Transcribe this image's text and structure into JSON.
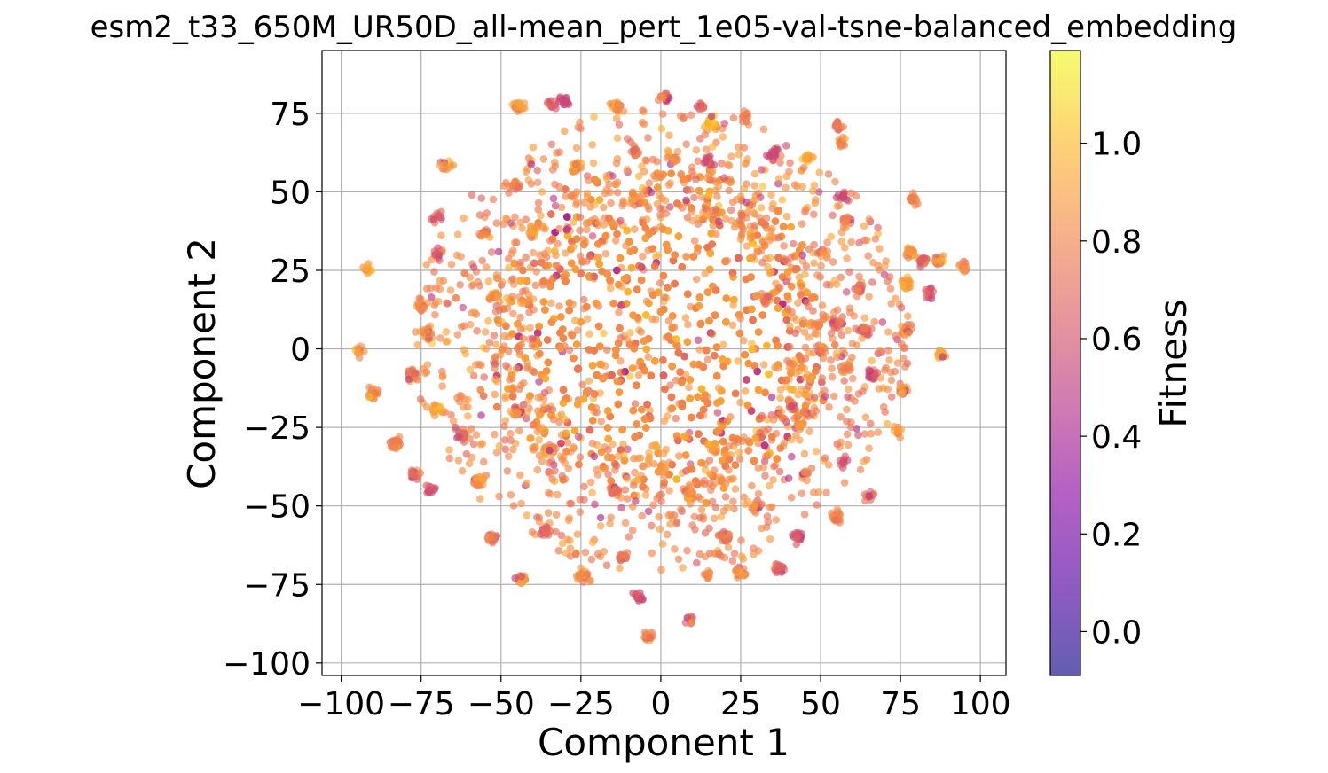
{
  "chart_data": {
    "type": "scatter",
    "title": "esm2_t33_650M_UR50D_all-mean_pert_1e05-val-tsne-balanced_embedding",
    "xlabel": "Component 1",
    "ylabel": "Component 2",
    "xlim": [
      -106,
      108
    ],
    "ylim": [
      -104,
      95
    ],
    "xticks": [
      -100,
      -75,
      -50,
      -25,
      0,
      25,
      50,
      75,
      100
    ],
    "xtick_labels": [
      "−100",
      "−75",
      "−50",
      "−25",
      "0",
      "25",
      "50",
      "75",
      "100"
    ],
    "yticks": [
      -100,
      -75,
      -50,
      -25,
      0,
      25,
      50,
      75
    ],
    "ytick_labels": [
      "−100",
      "−75",
      "−50",
      "−25",
      "0",
      "25",
      "50",
      "75"
    ],
    "grid": true,
    "colorbar": {
      "label": "Fitness",
      "colormap": "plasma",
      "range": [
        -0.09,
        1.19
      ],
      "ticks": [
        0.0,
        0.2,
        0.4,
        0.6,
        0.8,
        1.0
      ],
      "tick_labels": [
        "0.0",
        "0.2",
        "0.4",
        "0.6",
        "0.8",
        "1.0"
      ]
    },
    "marker_alpha": 0.65,
    "clusters": [
      {
        "x": -34,
        "y": 78,
        "fitness": 0.7
      },
      {
        "x": -30,
        "y": 79,
        "fitness": 0.5
      },
      {
        "x": -14,
        "y": 77,
        "fitness": 0.9
      },
      {
        "x": 13,
        "y": 77,
        "fitness": 0.7
      },
      {
        "x": 16,
        "y": 72,
        "fitness": 1.0
      },
      {
        "x": 26,
        "y": 74,
        "fitness": 0.8
      },
      {
        "x": -45,
        "y": 77,
        "fitness": 0.9
      },
      {
        "x": 1,
        "y": 80,
        "fitness": 0.8
      },
      {
        "x": 55,
        "y": 71,
        "fitness": 0.75
      },
      {
        "x": 57,
        "y": 66,
        "fitness": 0.85
      },
      {
        "x": -67,
        "y": 58,
        "fitness": 0.8
      },
      {
        "x": -26,
        "y": 58,
        "fitness": 0.9
      },
      {
        "x": -8,
        "y": 63,
        "fitness": 0.7
      },
      {
        "x": 4,
        "y": 60,
        "fitness": 0.85
      },
      {
        "x": 15,
        "y": 60,
        "fitness": 0.6
      },
      {
        "x": 35,
        "y": 62,
        "fitness": 0.5
      },
      {
        "x": 46,
        "y": 61,
        "fitness": 0.95
      },
      {
        "x": -45,
        "y": 52,
        "fitness": 0.8
      },
      {
        "x": 79,
        "y": 48,
        "fitness": 0.8
      },
      {
        "x": 57,
        "y": 48,
        "fitness": 0.6
      },
      {
        "x": -70,
        "y": 42,
        "fitness": 0.7
      },
      {
        "x": -55,
        "y": 37,
        "fitness": 0.85
      },
      {
        "x": -40,
        "y": 38,
        "fitness": 0.9
      },
      {
        "x": 58,
        "y": 41,
        "fitness": 0.75
      },
      {
        "x": -92,
        "y": 25,
        "fitness": 0.9
      },
      {
        "x": -70,
        "y": 30,
        "fitness": 0.7
      },
      {
        "x": 78,
        "y": 31,
        "fitness": 0.85
      },
      {
        "x": 87,
        "y": 28,
        "fitness": 0.9
      },
      {
        "x": 95,
        "y": 26,
        "fitness": 0.8
      },
      {
        "x": 82,
        "y": 28,
        "fitness": 0.7
      },
      {
        "x": 51,
        "y": 30,
        "fitness": 0.8
      },
      {
        "x": 62,
        "y": 19,
        "fitness": 0.75
      },
      {
        "x": 77,
        "y": 21,
        "fitness": 0.9
      },
      {
        "x": 84,
        "y": 18,
        "fitness": 0.6
      },
      {
        "x": -75,
        "y": 14,
        "fitness": 0.8
      },
      {
        "x": -52,
        "y": 17,
        "fitness": 0.85
      },
      {
        "x": -73,
        "y": 5,
        "fitness": 0.9
      },
      {
        "x": -94,
        "y": -1,
        "fitness": 0.85
      },
      {
        "x": 64,
        "y": 6,
        "fitness": 0.7
      },
      {
        "x": 77,
        "y": 6,
        "fitness": 0.85
      },
      {
        "x": 88,
        "y": -2,
        "fitness": 0.9
      },
      {
        "x": -78,
        "y": -8,
        "fitness": 0.75
      },
      {
        "x": -90,
        "y": -14,
        "fitness": 0.8
      },
      {
        "x": -70,
        "y": -19,
        "fitness": 0.9
      },
      {
        "x": -62,
        "y": -28,
        "fitness": 0.7
      },
      {
        "x": -83,
        "y": -30,
        "fitness": 0.8
      },
      {
        "x": -77,
        "y": -40,
        "fitness": 0.75
      },
      {
        "x": -72,
        "y": -45,
        "fitness": 0.6
      },
      {
        "x": -57,
        "y": -42,
        "fitness": 0.85
      },
      {
        "x": -53,
        "y": -60,
        "fitness": 0.8
      },
      {
        "x": -44,
        "y": -73,
        "fitness": 0.9
      },
      {
        "x": -36,
        "y": -58,
        "fitness": 0.7
      },
      {
        "x": -24,
        "y": -72,
        "fitness": 0.85
      },
      {
        "x": -12,
        "y": -66,
        "fitness": 0.75
      },
      {
        "x": -7,
        "y": -79,
        "fitness": 0.6
      },
      {
        "x": -4,
        "y": -92,
        "fitness": 0.8
      },
      {
        "x": 9,
        "y": -86,
        "fitness": 0.7
      },
      {
        "x": 15,
        "y": -72,
        "fitness": 0.75
      },
      {
        "x": 25,
        "y": -71,
        "fitness": 0.85
      },
      {
        "x": 37,
        "y": -70,
        "fitness": 0.7
      },
      {
        "x": 20,
        "y": -60,
        "fitness": 0.8
      },
      {
        "x": 43,
        "y": -60,
        "fitness": 0.6
      },
      {
        "x": 55,
        "y": -53,
        "fitness": 0.8
      },
      {
        "x": 65,
        "y": -47,
        "fitness": 0.7
      },
      {
        "x": 57,
        "y": -36,
        "fitness": 0.6
      },
      {
        "x": 74,
        "y": -26,
        "fitness": 0.9
      },
      {
        "x": 45,
        "y": -40,
        "fitness": 0.8
      },
      {
        "x": 76,
        "y": -13,
        "fitness": 0.85
      },
      {
        "x": 50,
        "y": 0,
        "fitness": 0.8
      },
      {
        "x": 41,
        "y": -18,
        "fitness": 0.75
      },
      {
        "x": 30,
        "y": -50,
        "fitness": 0.8
      },
      {
        "x": 8,
        "y": -45,
        "fitness": 0.85
      },
      {
        "x": -15,
        "y": -45,
        "fitness": 0.7
      },
      {
        "x": -35,
        "y": -32,
        "fitness": 0.8
      },
      {
        "x": -45,
        "y": -20,
        "fitness": 0.9
      },
      {
        "x": 33,
        "y": 16,
        "fitness": 0.8
      },
      {
        "x": 55,
        "y": 8,
        "fitness": 0.7
      },
      {
        "x": 58,
        "y": -6,
        "fitness": 0.85
      },
      {
        "x": 66,
        "y": -8,
        "fitness": 0.6
      }
    ],
    "core": {
      "center": [
        0,
        5
      ],
      "spread": [
        28,
        28
      ],
      "fitness_mean": 0.85
    }
  }
}
